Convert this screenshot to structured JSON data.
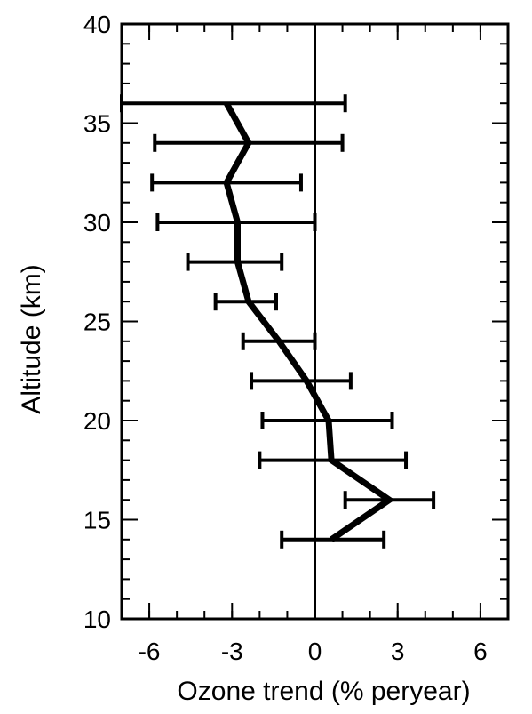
{
  "chart_data": {
    "type": "line",
    "xlabel": "Ozone trend (% peryear)",
    "ylabel": "Altitude (km)",
    "xlim": [
      -7,
      7
    ],
    "ylim": [
      10,
      40
    ],
    "xticks": [
      -6,
      -3,
      0,
      3,
      6
    ],
    "yticks": [
      10,
      15,
      20,
      25,
      30,
      35,
      40
    ],
    "xtick_labels": [
      "-6",
      "-3",
      "0",
      "3",
      "6"
    ],
    "ytick_labels": [
      "10",
      "15",
      "20",
      "25",
      "30",
      "35",
      "40"
    ],
    "zero_line": 0,
    "grid": false,
    "series": [
      {
        "points": [
          {
            "y": 14,
            "x": 0.6,
            "lo": -1.2,
            "hi": 2.5
          },
          {
            "y": 16,
            "x": 2.7,
            "lo": 1.1,
            "hi": 4.3
          },
          {
            "y": 18,
            "x": 0.6,
            "lo": -2.0,
            "hi": 3.3
          },
          {
            "y": 20,
            "x": 0.5,
            "lo": -1.9,
            "hi": 2.8
          },
          {
            "y": 22,
            "x": -0.3,
            "lo": -2.3,
            "hi": 1.3
          },
          {
            "y": 24,
            "x": -1.3,
            "lo": -2.6,
            "hi": 0.0
          },
          {
            "y": 26,
            "x": -2.4,
            "lo": -3.6,
            "hi": -1.4
          },
          {
            "y": 28,
            "x": -2.8,
            "lo": -4.6,
            "hi": -1.2
          },
          {
            "y": 30,
            "x": -2.8,
            "lo": -5.7,
            "hi": 0.0
          },
          {
            "y": 32,
            "x": -3.2,
            "lo": -5.9,
            "hi": -0.5
          },
          {
            "y": 34,
            "x": -2.4,
            "lo": -5.8,
            "hi": 1.0
          },
          {
            "y": 36,
            "x": -3.2,
            "lo": -7.0,
            "hi": 1.1
          }
        ]
      }
    ]
  }
}
